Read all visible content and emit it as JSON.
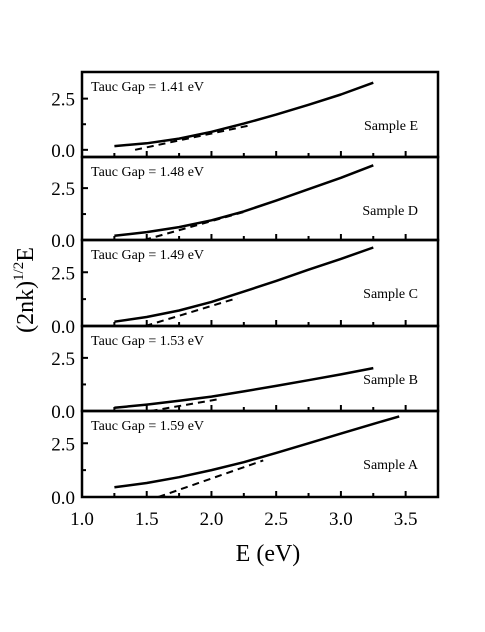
{
  "chart_data": {
    "type": "line",
    "xlabel": "E (eV)",
    "ylabel": {
      "base": "(2nk)",
      "exponent": "1/2",
      "suffix": "E"
    },
    "xlim": [
      1.0,
      3.75
    ],
    "x_ticks": [
      "1.0",
      "1.5",
      "2.0",
      "2.5",
      "3.0",
      "3.5"
    ],
    "grid": false,
    "panels": [
      {
        "name": "Sample E",
        "gap_label": "Tauc Gap = 1.41 eV",
        "ylim": [
          -0.35,
          3.8
        ],
        "y_ticks": [
          "2.5",
          "0.0"
        ],
        "curve": {
          "x": [
            1.25,
            1.5,
            1.75,
            2.0,
            2.25,
            2.5,
            2.75,
            3.0,
            3.25
          ],
          "y": [
            0.18,
            0.32,
            0.55,
            0.88,
            1.28,
            1.72,
            2.2,
            2.7,
            3.28
          ]
        },
        "fit": {
          "x": [
            1.41,
            2.3
          ],
          "y": [
            0.0,
            1.2
          ]
        }
      },
      {
        "name": "Sample D",
        "gap_label": "Tauc Gap = 1.48 eV",
        "ylim": [
          0.0,
          4.0
        ],
        "y_ticks": [
          "2.5",
          "0.0"
        ],
        "curve": {
          "x": [
            1.25,
            1.5,
            1.75,
            2.0,
            2.25,
            2.5,
            2.75,
            3.0,
            3.25
          ],
          "y": [
            0.2,
            0.38,
            0.62,
            0.95,
            1.38,
            1.9,
            2.45,
            3.0,
            3.6
          ]
        },
        "fit": {
          "x": [
            1.48,
            2.25
          ],
          "y": [
            0.0,
            1.35
          ]
        }
      },
      {
        "name": "Sample C",
        "gap_label": "Tauc Gap = 1.49 eV",
        "ylim": [
          0.0,
          4.0
        ],
        "y_ticks": [
          "2.5",
          "0.0"
        ],
        "curve": {
          "x": [
            1.25,
            1.5,
            1.75,
            2.0,
            2.25,
            2.5,
            2.75,
            3.0,
            3.25
          ],
          "y": [
            0.2,
            0.42,
            0.72,
            1.12,
            1.6,
            2.1,
            2.62,
            3.12,
            3.65
          ]
        },
        "fit": {
          "x": [
            1.49,
            2.2
          ],
          "y": [
            0.0,
            1.3
          ]
        }
      },
      {
        "name": "Sample B",
        "gap_label": "Tauc Gap = 1.53 eV",
        "ylim": [
          0.0,
          4.0
        ],
        "y_ticks": [
          "2.5",
          "0.0"
        ],
        "curve": {
          "x": [
            1.25,
            1.5,
            1.75,
            2.0,
            2.25,
            2.5,
            2.75,
            3.0,
            3.25
          ],
          "y": [
            0.15,
            0.3,
            0.48,
            0.68,
            0.92,
            1.18,
            1.45,
            1.72,
            2.02
          ]
        },
        "fit": {
          "x": [
            1.53,
            2.05
          ],
          "y": [
            0.0,
            0.55
          ]
        }
      },
      {
        "name": "Sample A",
        "gap_label": "Tauc Gap = 1.59 eV",
        "ylim": [
          0.0,
          4.0
        ],
        "y_ticks": [
          "2.5",
          "0.0"
        ],
        "curve": {
          "x": [
            1.25,
            1.5,
            1.75,
            2.0,
            2.25,
            2.5,
            2.75,
            3.0,
            3.25,
            3.45
          ],
          "y": [
            0.45,
            0.65,
            0.92,
            1.25,
            1.62,
            2.05,
            2.5,
            2.95,
            3.4,
            3.75
          ]
        },
        "fit": {
          "x": [
            1.59,
            2.4
          ],
          "y": [
            0.0,
            1.7
          ]
        }
      }
    ]
  }
}
